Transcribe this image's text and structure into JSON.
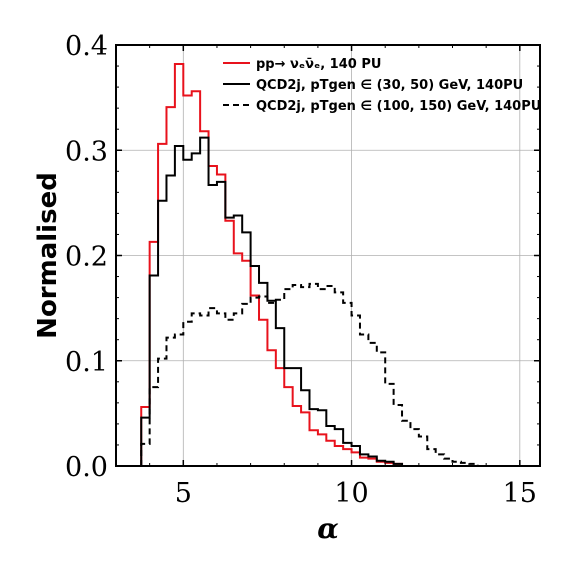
{
  "chart_data": {
    "type": "histogram",
    "xlabel": "α",
    "ylabel": "Normalised",
    "xlim": [
      3.0,
      15.6
    ],
    "ylim": [
      0.0,
      0.4
    ],
    "xticks": [
      5,
      10,
      15
    ],
    "yticks": [
      0.0,
      0.1,
      0.2,
      0.3,
      0.4
    ],
    "xtick_labels": [
      "5",
      "10",
      "15"
    ],
    "ytick_labels": [
      "0.0",
      "0.1",
      "0.2",
      "0.3",
      "0.4"
    ],
    "grid": true,
    "legend_position": "top-right",
    "series": [
      {
        "name": "pp→ ν_e ν̄_e, 140 PU",
        "legend_text": "pp→ νₑν̄ₑ, 140 PU",
        "color": "#e8121c",
        "line_style": "solid",
        "x_start": 3.75,
        "bin_width": 0.25,
        "values": [
          0.056,
          0.213,
          0.306,
          0.341,
          0.382,
          0.352,
          0.356,
          0.318,
          0.285,
          0.277,
          0.233,
          0.202,
          0.195,
          0.162,
          0.139,
          0.11,
          0.093,
          0.075,
          0.057,
          0.051,
          0.034,
          0.03,
          0.024,
          0.019,
          0.016,
          0.013,
          0.008,
          0.007,
          0.004,
          0.003,
          0.002
        ]
      },
      {
        "name": "QCD2j, p_T^gen ∈ (30,50) GeV, 140PU",
        "legend_text": "QCD2j, pTgen ∈ (30, 50) GeV, 140PU",
        "color": "#000000",
        "line_style": "solid",
        "x_start": 3.75,
        "bin_width": 0.25,
        "values": [
          0.046,
          0.181,
          0.252,
          0.276,
          0.304,
          0.291,
          0.297,
          0.312,
          0.267,
          0.27,
          0.236,
          0.238,
          0.222,
          0.19,
          0.174,
          0.157,
          0.131,
          0.093,
          0.093,
          0.072,
          0.054,
          0.053,
          0.038,
          0.035,
          0.022,
          0.019,
          0.011,
          0.009,
          0.005,
          0.004,
          0.002
        ]
      },
      {
        "name": "QCD2j, p_T^gen ∈ (100,150) GeV, 140PU",
        "legend_text": "QCD2j, pTgen ∈ (100, 150) GeV, 140PU",
        "color": "#000000",
        "line_style": "dashed",
        "x_start": 3.75,
        "bin_width": 0.25,
        "values": [
          0.021,
          0.075,
          0.102,
          0.122,
          0.125,
          0.137,
          0.145,
          0.143,
          0.15,
          0.145,
          0.139,
          0.145,
          0.154,
          0.16,
          0.161,
          0.155,
          0.158,
          0.168,
          0.172,
          0.17,
          0.173,
          0.168,
          0.171,
          0.165,
          0.155,
          0.143,
          0.125,
          0.117,
          0.108,
          0.078,
          0.058,
          0.043,
          0.035,
          0.028,
          0.016,
          0.011,
          0.007,
          0.004,
          0.003,
          0.002
        ]
      }
    ]
  }
}
